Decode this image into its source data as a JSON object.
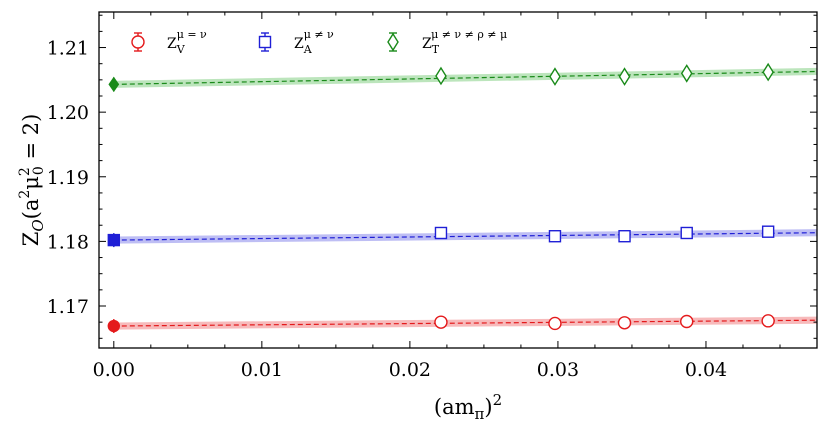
{
  "chart_data": {
    "type": "scatter",
    "title": "",
    "xlabel": "(am_π)^2",
    "ylabel": "Z_O(a^2 μ_0^2 = 2)",
    "xlim": [
      -0.001,
      0.0475
    ],
    "ylim": [
      1.1635,
      1.2155
    ],
    "xticks": [
      0.0,
      0.01,
      0.02,
      0.03,
      0.04
    ],
    "xtick_labels": [
      "0.00",
      "0.01",
      "0.02",
      "0.03",
      "0.04"
    ],
    "yticks": [
      1.17,
      1.18,
      1.19,
      1.2,
      1.21
    ],
    "ytick_labels": [
      "1.17",
      "1.18",
      "1.19",
      "1.20",
      "1.21"
    ],
    "grid": false,
    "legend_position": "top-left",
    "series": [
      {
        "name": "Z_V^{μ=ν}",
        "legend_main": "Z",
        "legend_sub": "V",
        "legend_sup": "μ = ν",
        "color": "#e41a1c",
        "band_color": "#f4a3a4",
        "marker": "circle",
        "x": [
          0.0221,
          0.0298,
          0.0345,
          0.0387,
          0.0442
        ],
        "y": [
          1.1675,
          1.1673,
          1.1674,
          1.1676,
          1.1677
        ],
        "extrapolated": {
          "x": 0.0,
          "y": 1.1669
        },
        "fit": {
          "y0": 1.1669,
          "slope": 0.019
        }
      },
      {
        "name": "Z_A^{μ≠ν}",
        "legend_main": "Z",
        "legend_sub": "A",
        "legend_sup": "μ ≠ ν",
        "color": "#1f1fd6",
        "band_color": "#a8a8f0",
        "marker": "square",
        "x": [
          0.0221,
          0.0298,
          0.0345,
          0.0387,
          0.0442
        ],
        "y": [
          1.1813,
          1.1808,
          1.1808,
          1.1813,
          1.1815
        ],
        "extrapolated": {
          "x": 0.0,
          "y": 1.1802
        },
        "fit": {
          "y0": 1.1802,
          "slope": 0.024
        }
      },
      {
        "name": "Z_T^{μ≠ν≠ρ≠μ}",
        "legend_main": "Z",
        "legend_sub": "T",
        "legend_sup": "μ ≠ ν ≠ ρ ≠ μ",
        "color": "#1a8a1a",
        "band_color": "#a6dca6",
        "marker": "diamond",
        "x": [
          0.0221,
          0.0298,
          0.0345,
          0.0387,
          0.0442
        ],
        "y": [
          1.2056,
          1.2055,
          1.2055,
          1.206,
          1.2062
        ],
        "extrapolated": {
          "x": 0.0,
          "y": 1.2043
        },
        "fit": {
          "y0": 1.2043,
          "slope": 0.042
        }
      }
    ]
  }
}
